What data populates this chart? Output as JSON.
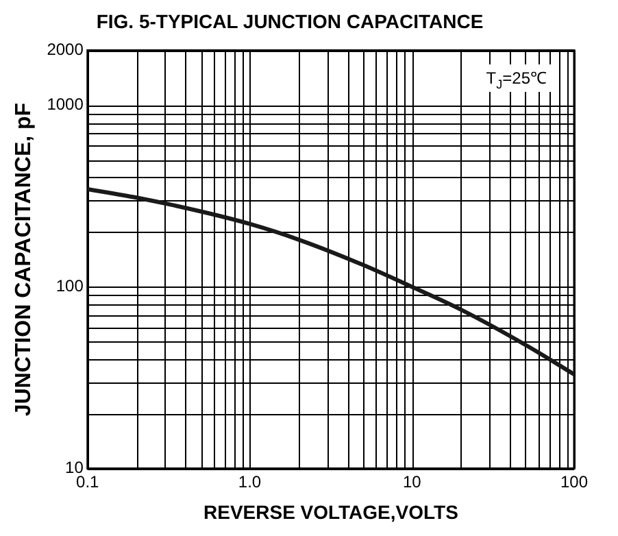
{
  "chart_data": {
    "type": "line",
    "title": "FIG. 5-TYPICAL JUNCTION CAPACITANCE",
    "xlabel": "REVERSE VOLTAGE,VOLTS",
    "ylabel": "JUNCTION CAPACITANCE, pF",
    "x": [
      0.1,
      0.2,
      0.5,
      1,
      2,
      5,
      10,
      20,
      50,
      100
    ],
    "series": [
      {
        "color": "#1a1a1a",
        "values": [
          345,
          310,
          260,
          222,
          182,
          132,
          100,
          75,
          48,
          33
        ]
      }
    ],
    "xlim": [
      0.1,
      100
    ],
    "xticks": [
      0.1,
      {
        "value": 1,
        "label": "1.0"
      },
      10,
      100
    ],
    "ylim": [
      10,
      2000
    ],
    "yticks": [
      10,
      100,
      1000,
      2000
    ],
    "log": "xy",
    "grid": true,
    "legend": false,
    "marker": "none",
    "line_style": "solid",
    "annotations": [
      "T$_{J}$=25℃"
    ]
  }
}
